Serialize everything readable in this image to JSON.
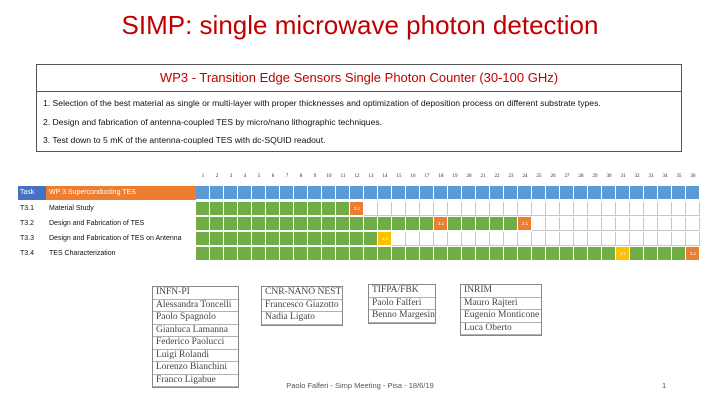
{
  "title": "SIMP: single microwave photon detection",
  "wp": {
    "heading": "WP3 - Transition Edge Sensors Single Photon Counter (30-100 GHz)",
    "objectives": [
      "1. Selection of the best material as single or multi-layer with proper thicknesses and optimization of deposition process on different substrate types.",
      "2. Design and fabrication of antenna-coupled TES by micro/nano lithographic techniques.",
      "3. Test down to 5 mK of the antenna-coupled TES with dc-SQUID readout."
    ]
  },
  "gantt": {
    "months": [
      "1",
      "2",
      "3",
      "4",
      "5",
      "6",
      "7",
      "8",
      "9",
      "10",
      "11",
      "12",
      "13",
      "14",
      "15",
      "16",
      "17",
      "18",
      "19",
      "20",
      "21",
      "22",
      "23",
      "24",
      "25",
      "26",
      "27",
      "28",
      "29",
      "30",
      "31",
      "32",
      "33",
      "34",
      "35",
      "36"
    ],
    "header": {
      "id": "Task",
      "name": "WP 3  Superconducting TES"
    },
    "tasks": [
      {
        "id": "T3.1",
        "name": "Material Study"
      },
      {
        "id": "T3.2",
        "name": "Design and Fabrication of TES"
      },
      {
        "id": "T3.3",
        "name": "Design and Fabrication of TES on Antenna"
      },
      {
        "id": "T3.4",
        "name": "TES Characterization"
      }
    ],
    "milestone_label": "3.1"
  },
  "teams": [
    {
      "name": "INFN-PI",
      "members": [
        "Alessandra Toncelli",
        "Paolo Spagnolo",
        "Gianluca Lamanna",
        "Federico Paolucci",
        "Luigi Rolandi",
        "Lorenzo Bianchini",
        "Franco Ligabue"
      ]
    },
    {
      "name": "CNR-NANO NEST",
      "members": [
        "Francesco Giazotto",
        "Nadia Ligato"
      ]
    },
    {
      "name": "TIFPA/FBK",
      "members": [
        "Paolo Falferi",
        "Benno Margesin"
      ]
    },
    {
      "name": "INRIM",
      "members": [
        "Mauro Rajteri",
        "Eugenio Monticone",
        "Luca Oberto"
      ]
    }
  ],
  "footer": "Paolo Falferi - Simp Meeting - Pisa - 18/6/19",
  "page_number": "1",
  "colors": {
    "title": "#c00000",
    "green": "#70ad47",
    "orange": "#ed7d31",
    "yellow": "#ffc000",
    "blue": "#5b9bd5",
    "header_task": "#4472c4"
  }
}
